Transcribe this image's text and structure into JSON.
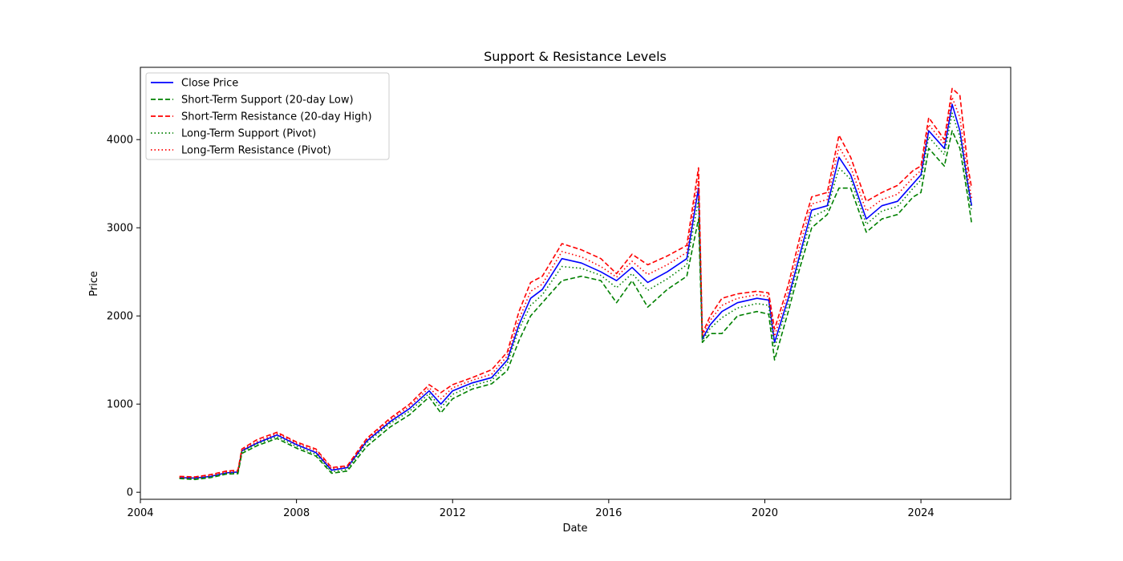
{
  "chart_data": {
    "type": "line",
    "title": "Support & Resistance Levels",
    "xlabel": "Date",
    "ylabel": "Price",
    "xlim": [
      2004.0,
      2026.3
    ],
    "ylim": [
      -80,
      4820
    ],
    "x_ticks": [
      2004,
      2008,
      2012,
      2016,
      2020,
      2024
    ],
    "x_tick_labels": [
      "2004",
      "2008",
      "2012",
      "2016",
      "2020",
      "2024"
    ],
    "y_ticks": [
      0,
      1000,
      2000,
      3000,
      4000
    ],
    "y_tick_labels": [
      "0",
      "1000",
      "2000",
      "3000",
      "4000"
    ],
    "grid": false,
    "legend_position": "upper left",
    "x": [
      2005.0,
      2005.4,
      2005.8,
      2006.2,
      2006.5,
      2006.6,
      2007.0,
      2007.5,
      2008.0,
      2008.5,
      2008.9,
      2009.3,
      2009.8,
      2010.4,
      2010.9,
      2011.4,
      2011.7,
      2012.0,
      2012.5,
      2013.0,
      2013.4,
      2013.7,
      2014.0,
      2014.3,
      2014.8,
      2015.3,
      2015.8,
      2016.2,
      2016.6,
      2017.0,
      2017.5,
      2018.0,
      2018.3,
      2018.4,
      2018.6,
      2018.9,
      2019.3,
      2019.8,
      2020.1,
      2020.25,
      2020.6,
      2020.9,
      2021.2,
      2021.6,
      2021.9,
      2022.2,
      2022.6,
      2023.0,
      2023.4,
      2023.8,
      2024.0,
      2024.2,
      2024.6,
      2024.8,
      2025.0,
      2025.2,
      2025.3
    ],
    "series": [
      {
        "name": "Close Price",
        "color": "#0000ff",
        "style": "solid",
        "values": [
          165,
          160,
          180,
          220,
          230,
          470,
          560,
          650,
          540,
          450,
          250,
          280,
          580,
          800,
          950,
          1150,
          1000,
          1150,
          1240,
          1300,
          1500,
          1900,
          2200,
          2300,
          2650,
          2600,
          2500,
          2400,
          2550,
          2380,
          2500,
          2650,
          3450,
          1740,
          1900,
          2050,
          2150,
          2200,
          2180,
          1700,
          2200,
          2700,
          3200,
          3250,
          3800,
          3600,
          3100,
          3250,
          3300,
          3500,
          3600,
          4100,
          3900,
          4400,
          4100,
          3500,
          3250
        ]
      },
      {
        "name": "Short-Term Support (20-day Low)",
        "color": "#008000",
        "style": "dashed",
        "values": [
          155,
          145,
          165,
          205,
          210,
          440,
          530,
          610,
          500,
          410,
          215,
          240,
          520,
          740,
          880,
          1080,
          900,
          1060,
          1170,
          1230,
          1380,
          1720,
          2000,
          2150,
          2400,
          2450,
          2400,
          2150,
          2400,
          2100,
          2300,
          2450,
          3100,
          1700,
          1800,
          1800,
          2000,
          2050,
          2020,
          1500,
          2050,
          2550,
          3000,
          3150,
          3450,
          3450,
          2950,
          3100,
          3150,
          3350,
          3400,
          3900,
          3700,
          4100,
          3900,
          3350,
          3050
        ]
      },
      {
        "name": "Short-Term Resistance (20-day High)",
        "color": "#ff0000",
        "style": "dashed",
        "values": [
          180,
          175,
          200,
          240,
          250,
          490,
          600,
          680,
          570,
          490,
          280,
          300,
          610,
          840,
          1000,
          1220,
          1130,
          1220,
          1300,
          1390,
          1590,
          2050,
          2380,
          2450,
          2820,
          2750,
          2650,
          2480,
          2700,
          2580,
          2680,
          2800,
          3680,
          1800,
          2000,
          2200,
          2250,
          2280,
          2260,
          1850,
          2350,
          2900,
          3350,
          3400,
          4050,
          3800,
          3300,
          3400,
          3480,
          3650,
          3700,
          4250,
          4000,
          4580,
          4500,
          3700,
          3450
        ]
      },
      {
        "name": "Long-Term Support (Pivot)",
        "color": "#008000",
        "style": "dotted",
        "values": [
          160,
          155,
          175,
          215,
          220,
          460,
          550,
          630,
          520,
          430,
          230,
          260,
          560,
          780,
          920,
          1120,
          960,
          1110,
          1210,
          1270,
          1460,
          1850,
          2120,
          2240,
          2560,
          2540,
          2460,
          2320,
          2480,
          2290,
          2420,
          2580,
          3320,
          1720,
          1860,
          1980,
          2090,
          2140,
          2120,
          1640,
          2140,
          2650,
          3120,
          3210,
          3680,
          3550,
          3040,
          3190,
          3240,
          3450,
          3540,
          4030,
          3830,
          4300,
          4030,
          3460,
          3180
        ]
      },
      {
        "name": "Long-Term Resistance (Pivot)",
        "color": "#ff0000",
        "style": "dotted",
        "values": [
          170,
          168,
          190,
          228,
          238,
          480,
          575,
          665,
          555,
          470,
          265,
          290,
          595,
          820,
          975,
          1185,
          1060,
          1185,
          1270,
          1340,
          1545,
          1960,
          2280,
          2360,
          2730,
          2670,
          2560,
          2440,
          2620,
          2470,
          2580,
          2720,
          3560,
          1770,
          1950,
          2120,
          2200,
          2240,
          2220,
          1770,
          2270,
          2800,
          3270,
          3320,
          3920,
          3690,
          3190,
          3320,
          3380,
          3570,
          3650,
          4170,
          3950,
          4480,
          4250,
          3590,
          3330
        ]
      }
    ]
  }
}
